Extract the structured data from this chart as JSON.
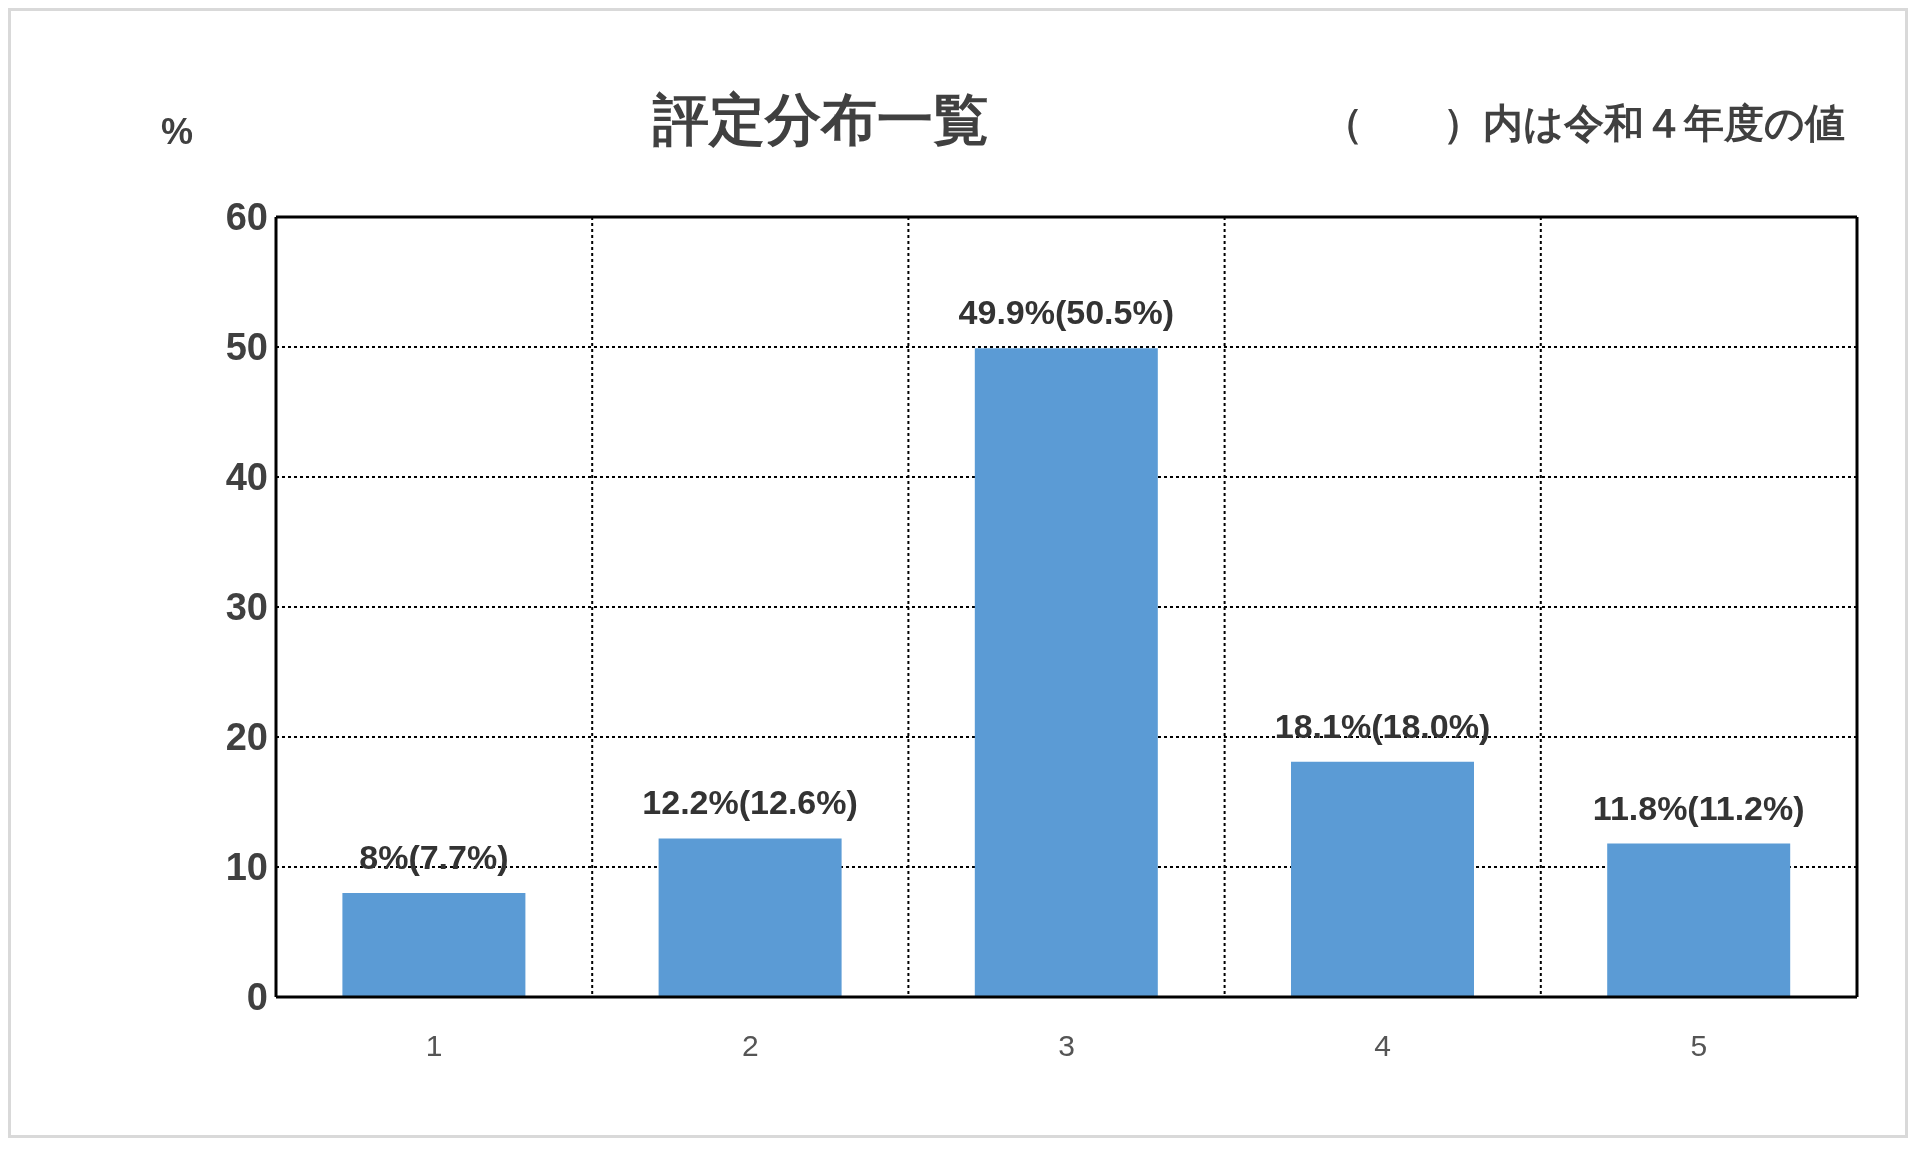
{
  "chart_data": {
    "type": "bar",
    "title": "評定分布一覧",
    "ylabel": "%",
    "annotations": [
      "（　　）内は令和４年度の値"
    ],
    "categories": [
      "1",
      "2",
      "3",
      "4",
      "5"
    ],
    "values": [
      8,
      12.2,
      49.9,
      18.1,
      11.8
    ],
    "value_labels": [
      "8%(7.7%)",
      "12.2%(12.6%)",
      "49.9%(50.5%)",
      "18.1%(18.0%)",
      "11.8%(11.2%)"
    ],
    "color": "#5b9bd5",
    "ylim": [
      0,
      60
    ],
    "yticks": [
      0,
      10,
      20,
      30,
      40,
      50,
      60
    ],
    "grid": true
  }
}
